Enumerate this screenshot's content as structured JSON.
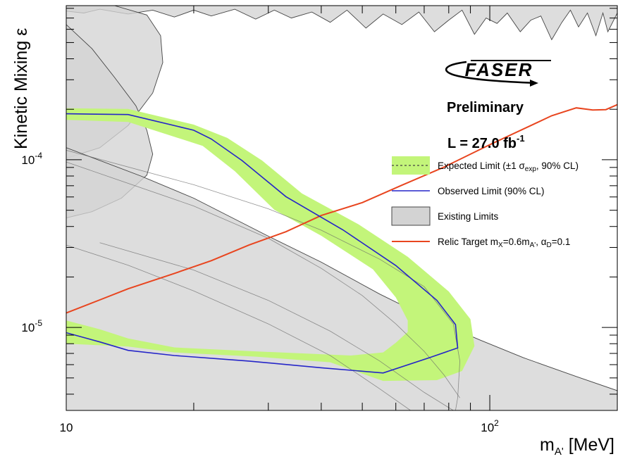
{
  "chart_data": {
    "type": "area",
    "xlabel": "m",
    "xlabel_sub": "A'",
    "xlabel_unit": " [MeV]",
    "ylabel": "Kinetic Mixing ε",
    "x_log": true,
    "y_log": true,
    "xlim": [
      10,
      200
    ],
    "ylim": [
      3.2e-06,
      0.00083
    ],
    "x_ticks": [
      {
        "value": 10,
        "base": "10",
        "exp": ""
      },
      {
        "value": 100,
        "base": "10",
        "exp": "2"
      }
    ],
    "y_ticks": [
      {
        "value": 1e-05,
        "base": "10",
        "exp": "-5"
      },
      {
        "value": 0.0001,
        "base": "10",
        "exp": "-4"
      }
    ],
    "annotations": {
      "logo": "FASER",
      "status": "Preliminary",
      "lumi_prefix": "L = 27.0 fb",
      "lumi_exp": "-1"
    },
    "legend": {
      "position": "right",
      "entries": [
        {
          "key": "expected",
          "text": "Expected Limit (±1 σ",
          "sub": "exp",
          "text2": ", 90% CL)"
        },
        {
          "key": "observed",
          "text": "Observed Limit (90% CL)"
        },
        {
          "key": "existing",
          "text": "Existing Limits"
        },
        {
          "key": "relic",
          "text": "Relic Target m",
          "sub": "X",
          "text2": "=0.6m",
          "sub2": "A'",
          "text3": ", α",
          "sub3": "D",
          "text4": "=0.1"
        }
      ]
    },
    "colors": {
      "band": "#c3f57a",
      "observed": "#2525c8",
      "relic": "#e8451f",
      "existing_fill": "#d3d3d3",
      "existing_line": "#444444"
    },
    "series": [
      {
        "key": "observed",
        "name": "Observed Limit (90% CL)",
        "points": [
          [
            10,
            0.000188
          ],
          [
            14,
            0.000186
          ],
          [
            20,
            0.00015
          ],
          [
            22,
            0.000133
          ],
          [
            26,
            9.9e-05
          ],
          [
            33,
            6.03e-05
          ],
          [
            45,
            3.82e-05
          ],
          [
            60,
            2.34e-05
          ],
          [
            75,
            1.45e-05
          ],
          [
            83,
            1.04e-05
          ],
          [
            84,
            7.55e-06
          ],
          [
            72,
            6.6e-06
          ],
          [
            56,
            5.35e-06
          ],
          [
            40,
            5.75e-06
          ],
          [
            27,
            6.3e-06
          ],
          [
            18,
            6.8e-06
          ],
          [
            14,
            7.3e-06
          ],
          [
            12,
            8.2e-06
          ],
          [
            10,
            9.3e-06
          ]
        ]
      },
      {
        "key": "expected_band",
        "name": "Expected Limit (±1 σexp, 90% CL)",
        "points": [
          [
            10,
            0.000203
          ],
          [
            14,
            0.000201
          ],
          [
            20,
            0.000162
          ],
          [
            24,
            0.000135
          ],
          [
            29,
            9.9e-05
          ],
          [
            36,
            6.3e-05
          ],
          [
            49,
            4.12e-05
          ],
          [
            64,
            2.64e-05
          ],
          [
            80,
            1.64e-05
          ],
          [
            90,
            1.12e-05
          ],
          [
            92,
            7.75e-06
          ],
          [
            86,
            5.5e-06
          ],
          [
            75,
            4.85e-06
          ],
          [
            56,
            4.8e-06
          ],
          [
            42,
            6.2e-06
          ],
          [
            28,
            6.7e-06
          ],
          [
            18,
            7.1e-06
          ],
          [
            14,
            7.7e-06
          ],
          [
            10,
            8e-06
          ],
          [
            10,
            1.1e-05
          ],
          [
            12,
            9.75e-06
          ],
          [
            14,
            8.6e-06
          ],
          [
            18,
            7.6e-06
          ],
          [
            28,
            7.2e-06
          ],
          [
            47,
            6.8e-06
          ],
          [
            56,
            7.1e-06
          ],
          [
            60,
            8.1e-06
          ],
          [
            64,
            9.4e-06
          ],
          [
            64,
            1.1e-05
          ],
          [
            60,
            1.51e-05
          ],
          [
            53,
            2.22e-05
          ],
          [
            40,
            3.52e-05
          ],
          [
            31,
            5.03e-05
          ],
          [
            25,
            8.55e-05
          ],
          [
            21,
            0.000121
          ],
          [
            14,
            0.000168
          ],
          [
            10,
            0.000173
          ]
        ]
      },
      {
        "key": "relic",
        "name": "Relic Target",
        "points": [
          [
            10,
            1.22e-05
          ],
          [
            12,
            1.46e-05
          ],
          [
            14,
            1.7e-05
          ],
          [
            18,
            2.1e-05
          ],
          [
            22,
            2.5e-05
          ],
          [
            27,
            3.1e-05
          ],
          [
            33,
            3.72e-05
          ],
          [
            40,
            4.65e-05
          ],
          [
            50,
            5.55e-05
          ],
          [
            62,
            7.05e-05
          ],
          [
            78,
            9.05e-05
          ],
          [
            100,
            0.000123
          ],
          [
            125,
            0.00016
          ],
          [
            140,
            0.000183
          ],
          [
            160,
            0.000204
          ],
          [
            175,
            0.000198
          ],
          [
            188,
            0.000199
          ],
          [
            200,
            0.000213
          ]
        ]
      }
    ],
    "existing_limits": [
      {
        "key": "existing-region-upper",
        "points": [
          [
            10,
            0.00083
          ],
          [
            200,
            0.00083
          ],
          [
            200,
            0.00075
          ],
          [
            190,
            0.00058
          ],
          [
            185,
            0.00075
          ],
          [
            178,
            0.00055
          ],
          [
            170,
            0.00075
          ],
          [
            162,
            0.00062
          ],
          [
            155,
            0.00078
          ],
          [
            148,
            0.00066
          ],
          [
            140,
            0.00052
          ],
          [
            132,
            0.00072
          ],
          [
            125,
            0.00068
          ],
          [
            118,
            0.00058
          ],
          [
            110,
            0.00075
          ],
          [
            104,
            0.00065
          ],
          [
            98,
            0.0007
          ],
          [
            92,
            0.00056
          ],
          [
            86,
            0.00078
          ],
          [
            80,
            0.00068
          ],
          [
            74,
            0.00058
          ],
          [
            68,
            0.00076
          ],
          [
            62,
            0.00064
          ],
          [
            56,
            0.00074
          ],
          [
            51,
            0.00061
          ],
          [
            46,
            0.00078
          ],
          [
            42,
            0.00066
          ],
          [
            38,
            0.00076
          ],
          [
            34,
            0.0007
          ],
          [
            31,
            0.00078
          ],
          [
            28,
            0.00069
          ],
          [
            25,
            0.00079
          ],
          [
            22,
            0.00072
          ],
          [
            20,
            0.00078
          ],
          [
            18,
            0.00071
          ],
          [
            16,
            0.00078
          ],
          [
            14,
            0.00074
          ],
          [
            12,
            0.00079
          ],
          [
            11,
            0.00075
          ],
          [
            10,
            0.00077
          ]
        ]
      },
      {
        "key": "existing-region-lobe",
        "points": [
          [
            10,
            0.00083
          ],
          [
            13,
            0.00083
          ],
          [
            15.5,
            0.00073
          ],
          [
            16.7,
            0.00055
          ],
          [
            16.9,
            0.00038
          ],
          [
            16,
            0.00025
          ],
          [
            14,
            0.00016
          ],
          [
            12,
            0.000118
          ],
          [
            10,
            0.000102
          ]
        ]
      },
      {
        "key": "existing-region-left",
        "points": [
          [
            10,
            0.00064
          ],
          [
            11.5,
            0.00046
          ],
          [
            13,
            0.00031
          ],
          [
            14.6,
            0.00021
          ],
          [
            15.5,
            0.00015
          ],
          [
            16,
            0.000108
          ],
          [
            15.5,
            8.1e-05
          ],
          [
            13.5,
            5.9e-05
          ],
          [
            11.5,
            4.9e-05
          ],
          [
            10,
            4.5e-05
          ]
        ]
      },
      {
        "key": "existing-region-lower",
        "points": [
          [
            10,
            0.000118
          ],
          [
            15,
            8e-05
          ],
          [
            20,
            5.9e-05
          ],
          [
            30,
            3.5e-05
          ],
          [
            40,
            2.45e-05
          ],
          [
            55,
            1.58e-05
          ],
          [
            70,
            1.17e-05
          ],
          [
            95,
            8.4e-06
          ],
          [
            120,
            6.6e-06
          ],
          [
            160,
            5.1e-06
          ],
          [
            200,
            4.2e-06
          ],
          [
            200,
            3.2e-06
          ],
          [
            10,
            3.2e-06
          ]
        ]
      }
    ],
    "existing_lines": [
      {
        "key": "existing-line-1",
        "points": [
          [
            10,
            0.000114
          ],
          [
            20,
            7.1e-05
          ],
          [
            30,
            5.1e-05
          ],
          [
            40,
            3.8e-05
          ],
          [
            55,
            2.55e-05
          ],
          [
            70,
            1.75e-05
          ],
          [
            82,
            1.05e-05
          ],
          [
            85,
            6.3e-06
          ],
          [
            84,
            3.8e-06
          ],
          [
            83,
            3.2e-06
          ]
        ]
      },
      {
        "key": "existing-line-2",
        "points": [
          [
            10,
            9.7e-05
          ],
          [
            20,
            5.3e-05
          ],
          [
            30,
            3.4e-05
          ],
          [
            40,
            2.25e-05
          ],
          [
            50,
            1.55e-05
          ],
          [
            60,
            1.05e-05
          ],
          [
            70,
            7.2e-06
          ],
          [
            78,
            5.2e-06
          ],
          [
            85,
            3.8e-06
          ]
        ]
      },
      {
        "key": "existing-line-3",
        "points": [
          [
            10,
            3.1e-05
          ],
          [
            14,
            2.35e-05
          ],
          [
            20,
            1.65e-05
          ],
          [
            30,
            1.05e-05
          ],
          [
            42,
            6.8e-06
          ],
          [
            55,
            4.3e-06
          ],
          [
            65,
            3.2e-06
          ]
        ]
      },
      {
        "key": "existing-line-4",
        "points": [
          [
            12,
            3.2e-05
          ],
          [
            20,
            2.2e-05
          ],
          [
            30,
            1.45e-05
          ],
          [
            42,
            9.5e-06
          ],
          [
            55,
            6.3e-06
          ],
          [
            70,
            4.1e-06
          ],
          [
            82,
            3.2e-06
          ]
        ]
      }
    ]
  }
}
